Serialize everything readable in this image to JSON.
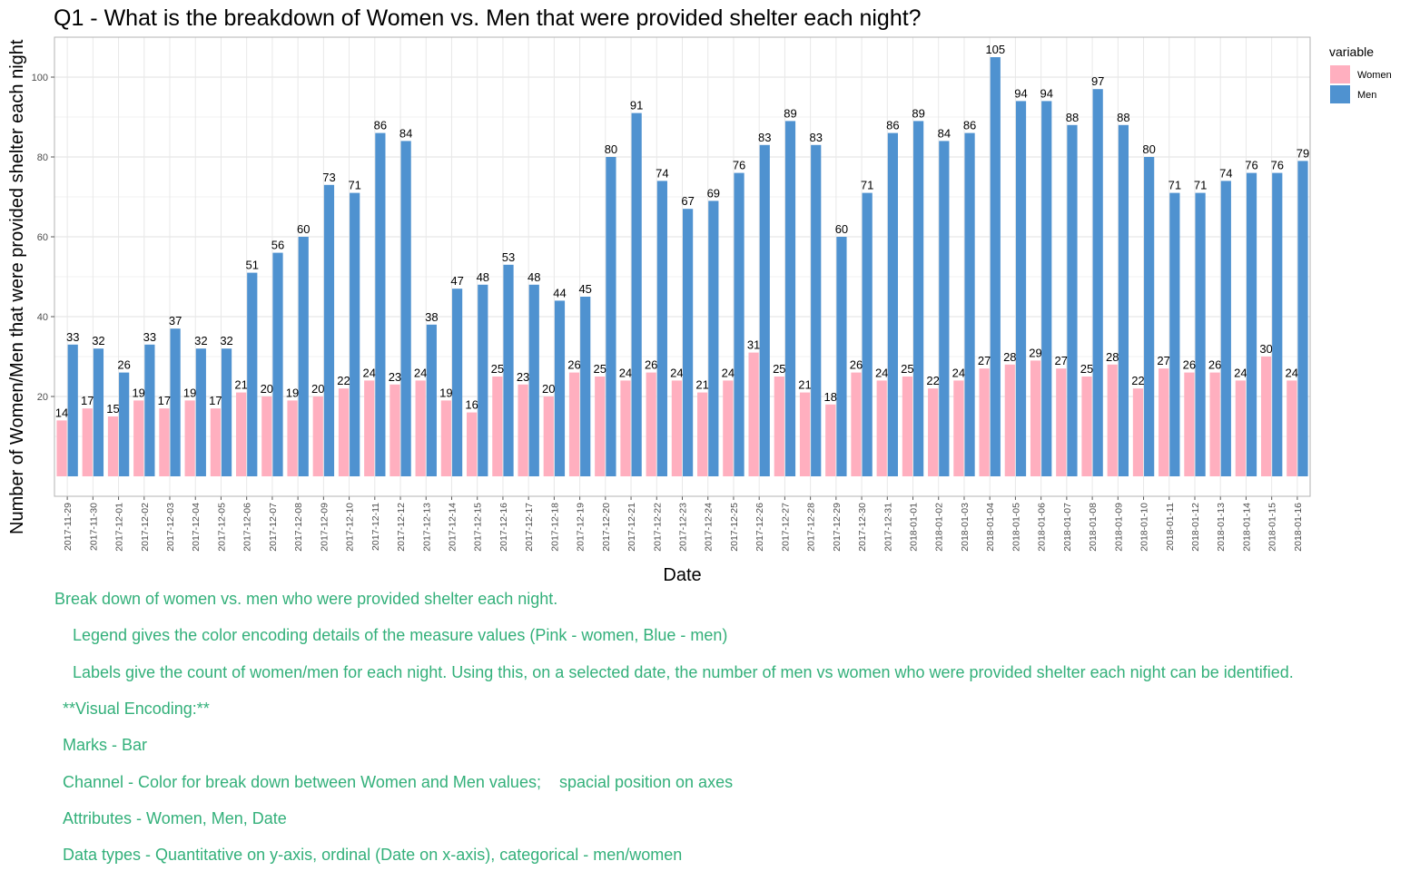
{
  "chart_data": {
    "type": "bar",
    "title": "Q1 - What is the breakdown of Women vs. Men that were provided shelter each night?",
    "xlabel": "Date",
    "ylabel": "Number of Women/Men that were provided shelter each night",
    "ylim": [
      -5,
      110
    ],
    "yticks": [
      20,
      40,
      60,
      80,
      100
    ],
    "grid": true,
    "legend": {
      "title": "variable",
      "placement": "right"
    },
    "categories": [
      "2017-11-29",
      "2017-11-30",
      "2017-12-01",
      "2017-12-02",
      "2017-12-03",
      "2017-12-04",
      "2017-12-05",
      "2017-12-06",
      "2017-12-07",
      "2017-12-08",
      "2017-12-09",
      "2017-12-10",
      "2017-12-11",
      "2017-12-12",
      "2017-12-13",
      "2017-12-14",
      "2017-12-15",
      "2017-12-16",
      "2017-12-17",
      "2017-12-18",
      "2017-12-19",
      "2017-12-20",
      "2017-12-21",
      "2017-12-22",
      "2017-12-23",
      "2017-12-24",
      "2017-12-25",
      "2017-12-26",
      "2017-12-27",
      "2017-12-28",
      "2017-12-29",
      "2017-12-30",
      "2017-12-31",
      "2018-01-01",
      "2018-01-02",
      "2018-01-03",
      "2018-01-04",
      "2018-01-05",
      "2018-01-06",
      "2018-01-07",
      "2018-01-08",
      "2018-01-09",
      "2018-01-10",
      "2018-01-11",
      "2018-01-12",
      "2018-01-13",
      "2018-01-14",
      "2018-01-15",
      "2018-01-16"
    ],
    "series": [
      {
        "name": "Women",
        "color": "#ffafbf",
        "values": [
          14,
          17,
          15,
          19,
          17,
          19,
          17,
          21,
          20,
          19,
          20,
          22,
          24,
          23,
          24,
          19,
          16,
          25,
          23,
          20,
          26,
          25,
          24,
          26,
          24,
          21,
          24,
          31,
          25,
          21,
          18,
          26,
          24,
          25,
          22,
          24,
          27,
          28,
          29,
          27,
          25,
          28,
          22,
          27,
          26,
          26,
          24,
          30,
          24
        ]
      },
      {
        "name": "Men",
        "color": "#4f92d0",
        "values": [
          33,
          32,
          26,
          33,
          37,
          32,
          32,
          51,
          56,
          60,
          73,
          71,
          86,
          84,
          38,
          47,
          48,
          53,
          48,
          44,
          45,
          80,
          91,
          74,
          67,
          69,
          76,
          83,
          89,
          83,
          60,
          71,
          86,
          89,
          84,
          86,
          105,
          94,
          94,
          88,
          97,
          88,
          80,
          71,
          71,
          74,
          76,
          76,
          79
        ]
      }
    ]
  },
  "notes": [
    "Break down of women vs. men who were provided shelter each night.",
    "Legend gives the color encoding details of the measure values (Pink - women, Blue - men)",
    "Labels give the count of women/men for each night. Using this, on a selected date, the number of men vs women who were provided shelter each night can be identified.",
    "**Visual Encoding:**",
    "Marks - Bar",
    "Channel - Color for break down between Women and Men values;    spacial position on axes",
    "Attributes - Women, Men, Date",
    "Data types - Quantitative on y-axis, ordinal (Date on x-axis), categorical - men/women"
  ]
}
